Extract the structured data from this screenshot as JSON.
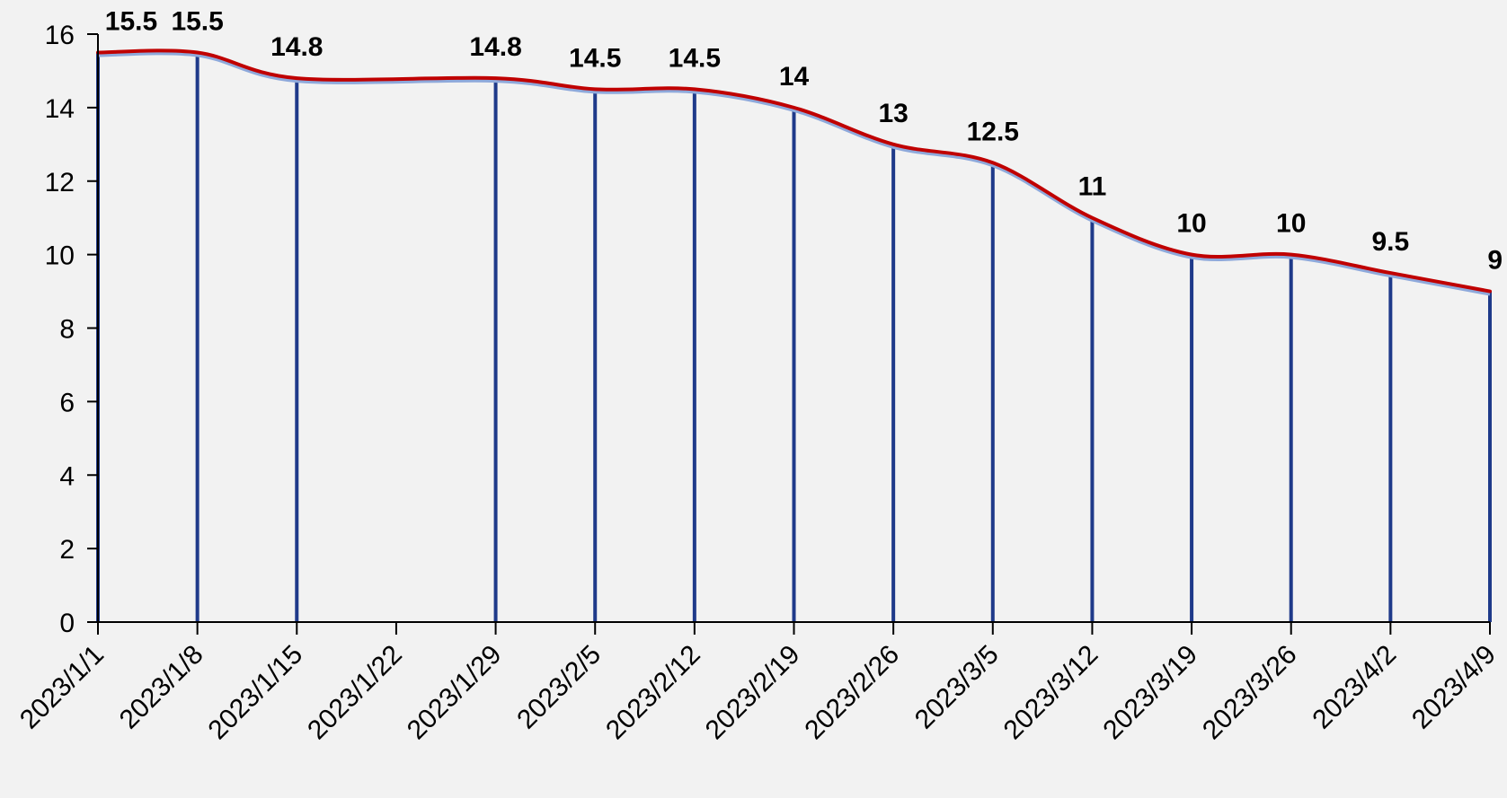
{
  "chart_data": {
    "type": "line",
    "x": [
      "2023/1/1",
      "2023/1/8",
      "2023/1/15",
      "2023/1/29",
      "2023/2/5",
      "2023/2/12",
      "2023/2/19",
      "2023/2/26",
      "2023/3/5",
      "2023/3/12",
      "2023/3/19",
      "2023/3/26",
      "2023/4/2",
      "2023/4/9"
    ],
    "series": [
      {
        "values": [
          15.5,
          15.5,
          14.8,
          14.8,
          14.5,
          14.5,
          14,
          13,
          12.5,
          11,
          10,
          10,
          9.5,
          9
        ],
        "data_labels": [
          "15.5",
          "15.5",
          "14.8",
          "14.8",
          "14.5",
          "14.5",
          "14",
          "13",
          "12.5",
          "11",
          "10",
          "10",
          "9.5",
          "9"
        ]
      }
    ],
    "xticks": [
      "2023/1/1",
      "2023/1/8",
      "2023/1/15",
      "2023/1/22",
      "2023/1/29",
      "2023/2/5",
      "2023/2/12",
      "2023/2/19",
      "2023/2/26",
      "2023/3/5",
      "2023/3/12",
      "2023/3/19",
      "2023/3/26",
      "2023/4/2",
      "2023/4/9"
    ],
    "yticks": [
      "0",
      "2",
      "4",
      "6",
      "8",
      "10",
      "12",
      "14",
      "16"
    ],
    "xlim": [
      "2023/1/1",
      "2023/4/9"
    ],
    "ylim": [
      0,
      16
    ],
    "title": "",
    "xlabel": "",
    "ylabel": "",
    "grid": false,
    "legend": "none",
    "drop_lines": true,
    "smooth": true,
    "colors": {
      "background": "#f2f2f2",
      "line": "#c00000",
      "line_shadow": "#8ea9db",
      "drop_line": "#1f3a8a",
      "axis": "#000000"
    }
  }
}
